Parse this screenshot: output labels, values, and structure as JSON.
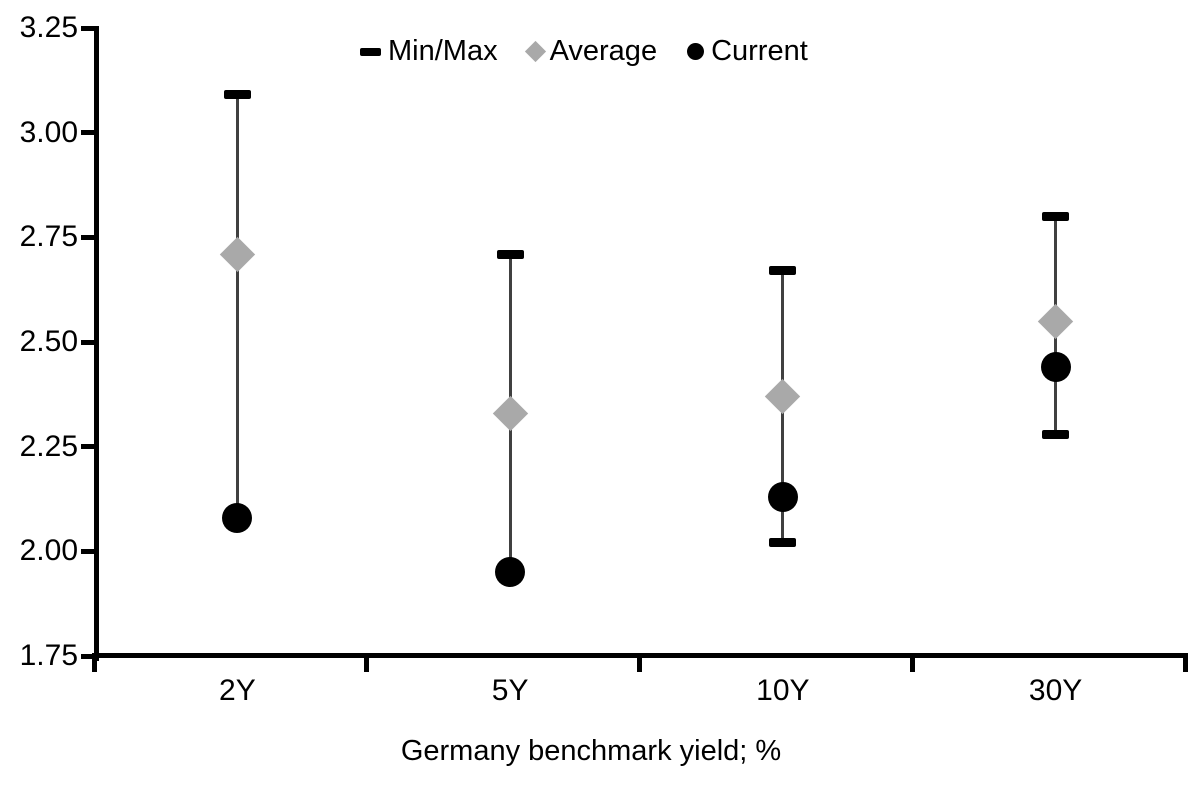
{
  "chart_data": {
    "type": "scatter",
    "subtype": "min-max-range",
    "title": "",
    "xlabel": "Germany benchmark yield; %",
    "ylabel": "",
    "categories": [
      "2Y",
      "5Y",
      "10Y",
      "30Y"
    ],
    "ylim": [
      1.75,
      3.25
    ],
    "y_tick_step": 0.25,
    "y_tick_labels": [
      "3.25",
      "3.00",
      "2.75",
      "2.50",
      "2.25",
      "2.00",
      "1.75"
    ],
    "grid": false,
    "legend_position": "top-center",
    "legend": [
      {
        "label": "Min/Max",
        "marker": "dash",
        "color": "#000000"
      },
      {
        "label": "Average",
        "marker": "diamond",
        "color": "#a9a9a9"
      },
      {
        "label": "Current",
        "marker": "circle",
        "color": "#000000"
      }
    ],
    "series": [
      {
        "name": "Min/Max",
        "role": "range",
        "max": [
          3.09,
          2.71,
          2.67,
          2.8
        ],
        "min": [
          2.08,
          1.95,
          2.02,
          2.28
        ]
      },
      {
        "name": "Average",
        "role": "point",
        "marker": "diamond",
        "values": [
          2.71,
          2.33,
          2.37,
          2.55
        ]
      },
      {
        "name": "Current",
        "role": "point",
        "marker": "circle",
        "values": [
          2.08,
          1.95,
          2.13,
          2.44
        ]
      }
    ],
    "colors": {
      "range_line": "#404040",
      "cap": "#000000",
      "average": "#a9a9a9",
      "current": "#000000",
      "axis": "#000000",
      "text": "#000000",
      "background": "#ffffff"
    }
  }
}
